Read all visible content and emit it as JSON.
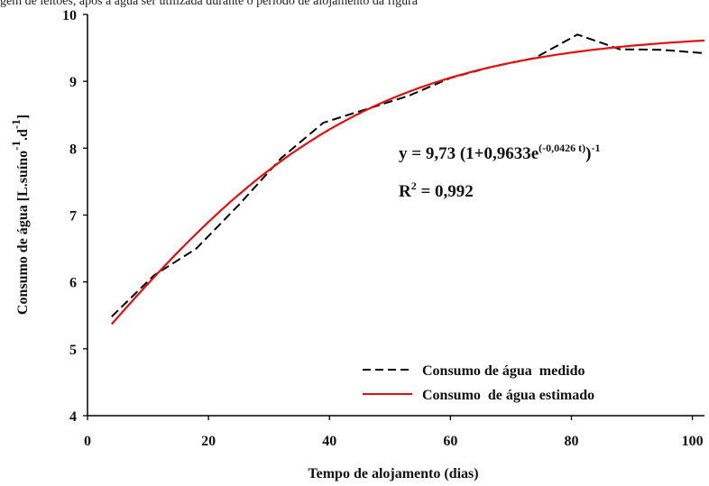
{
  "header_fragment": "gem de leitões, após a água ser utilizada durante o período de alojamento da figura",
  "chart_data": {
    "type": "line",
    "xlabel": "Tempo de alojamento (dias)",
    "ylabel_parts": {
      "main": "Consumo de água [L.suíno",
      "sup1": "-1",
      "mid": ".d",
      "sup2": "-1",
      "end": "]"
    },
    "xlim": [
      0,
      102
    ],
    "ylim": [
      4,
      10
    ],
    "x_ticks": [
      "0",
      "20",
      "40",
      "60",
      "80",
      "100"
    ],
    "y_ticks": [
      "4",
      "5",
      "6",
      "7",
      "8",
      "9",
      "10"
    ],
    "legend_position": "bottom-right",
    "series": [
      {
        "name": "Consumo de água  medido",
        "style": "dashed",
        "color": "#000000",
        "x": [
          4,
          11,
          18,
          25,
          32,
          39,
          46,
          53,
          60,
          67,
          74,
          81,
          88,
          95,
          102
        ],
        "y": [
          5.48,
          6.1,
          6.5,
          7.15,
          7.85,
          8.38,
          8.58,
          8.78,
          9.05,
          9.22,
          9.35,
          9.7,
          9.48,
          9.47,
          9.42
        ]
      },
      {
        "name": "Consumo  de água estimado",
        "style": "solid",
        "color": "#e01010",
        "function": "logistic",
        "params": {
          "a": 9.73,
          "b": 0.9633,
          "c": 0.0426
        },
        "x_range": [
          4,
          102
        ]
      }
    ],
    "equation": {
      "prefix": "y = 9,73 (1+0,9633e",
      "exponent": "(-0,0426 t)",
      "close": ")",
      "outer_exp": "-1"
    },
    "r2": {
      "label": "R",
      "sup": "2",
      "value": " = 0,992"
    }
  }
}
